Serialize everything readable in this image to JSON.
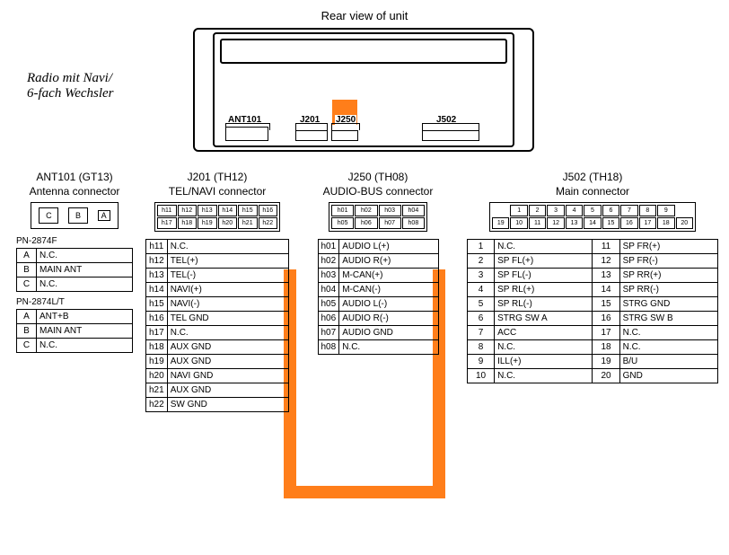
{
  "title": "Rear view of unit",
  "side_text_1": "Radio mit Navi/",
  "side_text_2": "6-fach Wechsler",
  "unit_connectors": {
    "ant101": "ANT101",
    "j201": "J201",
    "j250": "J250",
    "j502": "J502"
  },
  "columns": {
    "ant": {
      "hdr1": "ANT101 (GT13)",
      "hdr2": "Antenna connector",
      "labels": [
        "C",
        "B",
        "A"
      ],
      "t1_hdr": "PN-2874F",
      "t1": [
        [
          "A",
          "N.C."
        ],
        [
          "B",
          "MAIN ANT"
        ],
        [
          "C",
          "N.C."
        ]
      ],
      "t2_hdr": "PN-2874L/T",
      "t2": [
        [
          "A",
          "ANT+B"
        ],
        [
          "B",
          "MAIN ANT"
        ],
        [
          "C",
          "N.C."
        ]
      ]
    },
    "j201": {
      "hdr1": "J201 (TH12)",
      "hdr2": "TEL/NAVI connector",
      "grid": [
        "h11",
        "h12",
        "h13",
        "h14",
        "h15",
        "h16",
        "h17",
        "h18",
        "h19",
        "h20",
        "h21",
        "h22"
      ],
      "rows": [
        [
          "h11",
          "N.C."
        ],
        [
          "h12",
          "TEL(+)"
        ],
        [
          "h13",
          "TEL(-)"
        ],
        [
          "h14",
          "NAVI(+)"
        ],
        [
          "h15",
          "NAVI(-)"
        ],
        [
          "h16",
          "TEL GND"
        ],
        [
          "h17",
          "N.C."
        ],
        [
          "h18",
          "AUX GND"
        ],
        [
          "h19",
          "AUX GND"
        ],
        [
          "h20",
          "NAVI GND"
        ],
        [
          "h21",
          "AUX GND"
        ],
        [
          "h22",
          "SW GND"
        ]
      ]
    },
    "j250": {
      "hdr1": "J250 (TH08)",
      "hdr2": "AUDIO-BUS connector",
      "grid": [
        "h01",
        "h02",
        "h03",
        "h04",
        "h05",
        "h06",
        "h07",
        "h08"
      ],
      "rows": [
        [
          "h01",
          "AUDIO L(+)"
        ],
        [
          "h02",
          "AUDIO R(+)"
        ],
        [
          "h03",
          "M-CAN(+)"
        ],
        [
          "h04",
          "M-CAN(-)"
        ],
        [
          "h05",
          "AUDIO L(-)"
        ],
        [
          "h06",
          "AUDIO R(-)"
        ],
        [
          "h07",
          "AUDIO GND"
        ],
        [
          "h08",
          "N.C."
        ]
      ]
    },
    "j502": {
      "hdr1": "J502 (TH18)",
      "hdr2": "Main connector",
      "grid_top": [
        "1",
        "2",
        "3",
        "4",
        "5",
        "6",
        "7",
        "8",
        "9"
      ],
      "grid_bot": [
        "19",
        "10",
        "11",
        "12",
        "13",
        "14",
        "15",
        "16",
        "17",
        "18",
        "20"
      ],
      "left": [
        [
          "1",
          "N.C."
        ],
        [
          "2",
          "SP FL(+)"
        ],
        [
          "3",
          "SP FL(-)"
        ],
        [
          "4",
          "SP RL(+)"
        ],
        [
          "5",
          "SP RL(-)"
        ],
        [
          "6",
          "STRG SW A"
        ],
        [
          "7",
          "ACC"
        ],
        [
          "8",
          "N.C."
        ],
        [
          "9",
          "ILL(+)"
        ],
        [
          "10",
          "N.C."
        ]
      ],
      "right": [
        [
          "11",
          "SP FR(+)"
        ],
        [
          "12",
          "SP FR(-)"
        ],
        [
          "13",
          "SP RR(+)"
        ],
        [
          "14",
          "SP RR(-)"
        ],
        [
          "15",
          "STRG GND"
        ],
        [
          "16",
          "STRG SW B"
        ],
        [
          "17",
          "N.C."
        ],
        [
          "18",
          "N.C."
        ],
        [
          "19",
          "B/U"
        ],
        [
          "20",
          "GND"
        ]
      ]
    }
  },
  "colors": {
    "accent": "#ff7e1a",
    "line": "#000000"
  }
}
